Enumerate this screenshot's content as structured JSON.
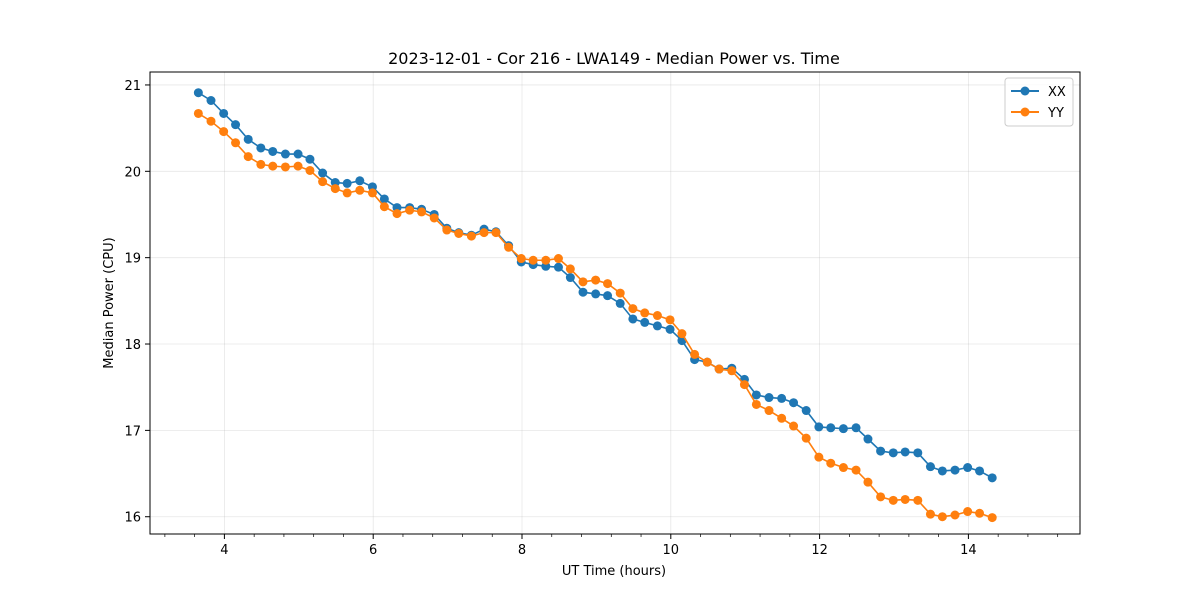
{
  "chart_data": {
    "type": "line",
    "title": "2023-12-01 - Cor 216 - LWA149 - Median Power vs. Time",
    "xlabel": "UT Time (hours)",
    "ylabel": "Median Power (CPU)",
    "xlim": [
      3.0,
      15.5
    ],
    "ylim": [
      15.8,
      21.15
    ],
    "xticks": [
      4,
      6,
      8,
      10,
      12,
      14
    ],
    "xtick_labels": [
      "4",
      "6",
      "8",
      "10",
      "12",
      "14"
    ],
    "yticks": [
      16,
      17,
      18,
      19,
      20,
      21
    ],
    "ytick_labels": [
      "16",
      "17",
      "18",
      "19",
      "20",
      "21"
    ],
    "grid": true,
    "legend_position": "top-right",
    "x": [
      3.65,
      3.82,
      3.99,
      4.15,
      4.32,
      4.49,
      4.65,
      4.82,
      4.99,
      5.15,
      5.32,
      5.49,
      5.65,
      5.82,
      5.99,
      6.15,
      6.32,
      6.49,
      6.65,
      6.82,
      6.99,
      7.15,
      7.32,
      7.49,
      7.65,
      7.82,
      7.99,
      8.15,
      8.32,
      8.49,
      8.65,
      8.82,
      8.99,
      9.15,
      9.32,
      9.49,
      9.65,
      9.82,
      9.99,
      10.15,
      10.32,
      10.49,
      10.65,
      10.82,
      10.99,
      11.15,
      11.32,
      11.49,
      11.65,
      11.82,
      11.99,
      12.15,
      12.32,
      12.49,
      12.65,
      12.82,
      12.99,
      13.15,
      13.32,
      13.49,
      13.65,
      13.82,
      13.99,
      14.15,
      14.32
    ],
    "series": [
      {
        "name": "XX",
        "color": "#1f77b4",
        "values": [
          20.91,
          20.82,
          20.67,
          20.54,
          20.37,
          20.27,
          20.23,
          20.2,
          20.2,
          20.14,
          19.98,
          19.87,
          19.86,
          19.89,
          19.82,
          19.68,
          19.58,
          19.58,
          19.56,
          19.5,
          19.34,
          19.29,
          19.26,
          19.33,
          19.3,
          19.14,
          18.95,
          18.92,
          18.9,
          18.89,
          18.77,
          18.6,
          18.58,
          18.56,
          18.47,
          18.29,
          18.25,
          18.21,
          18.17,
          18.04,
          17.82,
          17.79,
          17.71,
          17.72,
          17.59,
          17.41,
          17.38,
          17.37,
          17.32,
          17.23,
          17.04,
          17.03,
          17.02,
          17.03,
          16.9,
          16.76,
          16.74,
          16.75,
          16.74,
          16.58,
          16.53,
          16.54,
          16.57,
          16.53,
          16.45
        ]
      },
      {
        "name": "YY",
        "color": "#ff7f0e",
        "values": [
          20.67,
          20.58,
          20.46,
          20.33,
          20.17,
          20.08,
          20.06,
          20.05,
          20.06,
          20.01,
          19.88,
          19.8,
          19.75,
          19.78,
          19.75,
          19.59,
          19.51,
          19.55,
          19.53,
          19.46,
          19.32,
          19.28,
          19.25,
          19.29,
          19.29,
          19.12,
          18.99,
          18.97,
          18.97,
          18.99,
          18.87,
          18.72,
          18.74,
          18.7,
          18.59,
          18.41,
          18.36,
          18.33,
          18.28,
          18.12,
          17.88,
          17.79,
          17.71,
          17.69,
          17.53,
          17.3,
          17.23,
          17.14,
          17.05,
          16.91,
          16.69,
          16.62,
          16.57,
          16.54,
          16.4,
          16.23,
          16.19,
          16.2,
          16.19,
          16.03,
          16.0,
          16.02,
          16.06,
          16.04,
          15.99
        ]
      }
    ]
  }
}
